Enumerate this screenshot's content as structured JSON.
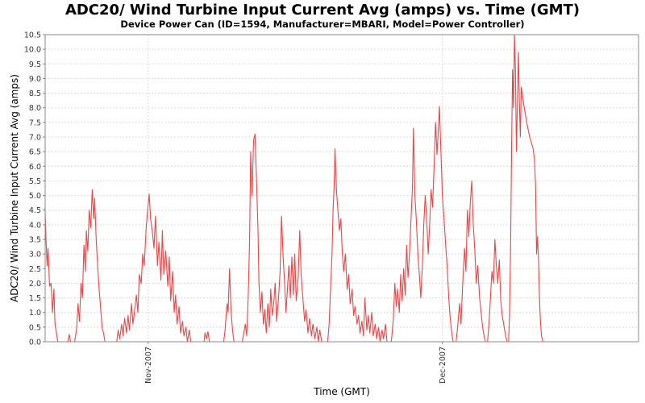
{
  "chart_data": {
    "type": "line",
    "title": "ADC20/ Wind Turbine Input Current Avg (amps) vs. Time (GMT)",
    "subtitle": "Device Power Can (ID=1594, Manufacturer=MBARI, Model=Power Controller)",
    "xlabel": "Time (GMT)",
    "ylabel": "ADC20/ Wind Turbine Input Current Avg (amps)",
    "x_units": "days relative to 2007-11-01 (GMT)",
    "xlim": [
      -10.5,
      50.0
    ],
    "ylim": [
      0.0,
      10.5
    ],
    "grid": true,
    "legend": "none",
    "x_ticks": [
      {
        "value": 0,
        "label": "Nov-2007"
      },
      {
        "value": 30,
        "label": "Dec-2007"
      }
    ],
    "y_ticks": [
      "0.0",
      "0.5",
      "1.0",
      "1.5",
      "2.0",
      "2.5",
      "3.0",
      "3.5",
      "4.0",
      "4.5",
      "5.0",
      "5.5",
      "6.0",
      "6.5",
      "7.0",
      "7.5",
      "8.0",
      "8.5",
      "9.0",
      "9.5",
      "10.0",
      "10.5"
    ],
    "series": [
      {
        "name": "ADC20/ Wind Turbine Input Current Avg",
        "color": "#ee4444",
        "points": [
          [
            -10.52,
            4.6
          ],
          [
            -10.4,
            3.4
          ],
          [
            -10.3,
            2.6
          ],
          [
            -10.2,
            3.2
          ],
          [
            -10.05,
            1.9
          ],
          [
            -9.9,
            2.0
          ],
          [
            -9.75,
            1.0
          ],
          [
            -9.6,
            1.8
          ],
          [
            -9.5,
            0.6
          ],
          [
            -9.35,
            0.3
          ],
          [
            -9.2,
            0.0
          ],
          [
            -8.2,
            0.0
          ],
          [
            -8.05,
            0.25
          ],
          [
            -7.9,
            0.0
          ],
          [
            -7.5,
            0.0
          ],
          [
            -7.3,
            0.4
          ],
          [
            -7.15,
            1.3
          ],
          [
            -7.0,
            0.7
          ],
          [
            -6.85,
            2.0
          ],
          [
            -6.7,
            1.5
          ],
          [
            -6.55,
            3.3
          ],
          [
            -6.4,
            2.4
          ],
          [
            -6.3,
            3.8
          ],
          [
            -6.15,
            3.1
          ],
          [
            -6.0,
            4.5
          ],
          [
            -5.85,
            3.9
          ],
          [
            -5.7,
            5.2
          ],
          [
            -5.55,
            4.2
          ],
          [
            -5.45,
            4.9
          ],
          [
            -5.3,
            3.5
          ],
          [
            -5.15,
            2.6
          ],
          [
            -5.0,
            1.8
          ],
          [
            -4.85,
            1.2
          ],
          [
            -4.7,
            0.5
          ],
          [
            -4.55,
            0.3
          ],
          [
            -4.4,
            0.0
          ],
          [
            -3.2,
            0.0
          ],
          [
            -3.05,
            0.4
          ],
          [
            -2.9,
            0.1
          ],
          [
            -2.7,
            0.6
          ],
          [
            -2.55,
            0.2
          ],
          [
            -2.4,
            0.8
          ],
          [
            -2.2,
            0.3
          ],
          [
            -2.05,
            0.9
          ],
          [
            -1.9,
            0.4
          ],
          [
            -1.7,
            1.3
          ],
          [
            -1.55,
            0.6
          ],
          [
            -1.4,
            1.0
          ],
          [
            -1.2,
            1.6
          ],
          [
            -1.05,
            1.0
          ],
          [
            -0.9,
            2.3
          ],
          [
            -0.7,
            2.0
          ],
          [
            -0.55,
            3.0
          ],
          [
            -0.4,
            2.6
          ],
          [
            -0.2,
            3.9
          ],
          [
            -0.05,
            4.5
          ],
          [
            0.1,
            5.05
          ],
          [
            0.25,
            4.2
          ],
          [
            0.45,
            3.7
          ],
          [
            0.6,
            3.2
          ],
          [
            0.75,
            4.3
          ],
          [
            0.95,
            2.6
          ],
          [
            1.1,
            3.4
          ],
          [
            1.3,
            2.1
          ],
          [
            1.45,
            3.8
          ],
          [
            1.6,
            2.3
          ],
          [
            1.8,
            3.1
          ],
          [
            2.0,
            1.9
          ],
          [
            2.15,
            2.9
          ],
          [
            2.3,
            1.4
          ],
          [
            2.5,
            2.4
          ],
          [
            2.65,
            1.0
          ],
          [
            2.8,
            1.6
          ],
          [
            2.95,
            0.6
          ],
          [
            3.15,
            1.2
          ],
          [
            3.3,
            0.3
          ],
          [
            3.5,
            0.7
          ],
          [
            3.65,
            0.2
          ],
          [
            3.85,
            0.5
          ],
          [
            4.0,
            0.0
          ],
          [
            4.2,
            0.4
          ],
          [
            4.35,
            0.0
          ],
          [
            5.7,
            0.0
          ],
          [
            5.8,
            0.3
          ],
          [
            5.95,
            0.1
          ],
          [
            6.1,
            0.35
          ],
          [
            6.25,
            0.0
          ],
          [
            7.7,
            0.0
          ],
          [
            7.85,
            0.4
          ],
          [
            7.95,
            0.9
          ],
          [
            8.05,
            1.3
          ],
          [
            8.15,
            1.0
          ],
          [
            8.3,
            2.5
          ],
          [
            8.45,
            1.1
          ],
          [
            8.6,
            0.4
          ],
          [
            8.75,
            0.0
          ],
          [
            9.6,
            0.0
          ],
          [
            9.75,
            0.3
          ],
          [
            9.9,
            0.6
          ],
          [
            10.05,
            0.2
          ],
          [
            10.2,
            1.5
          ],
          [
            10.35,
            3.5
          ],
          [
            10.45,
            6.5
          ],
          [
            10.6,
            5.0
          ],
          [
            10.75,
            6.9
          ],
          [
            10.9,
            7.1
          ],
          [
            11.05,
            5.5
          ],
          [
            11.2,
            3.8
          ],
          [
            11.3,
            2.0
          ],
          [
            11.45,
            1.0
          ],
          [
            11.6,
            1.7
          ],
          [
            11.75,
            0.6
          ],
          [
            11.9,
            1.1
          ],
          [
            12.05,
            0.3
          ],
          [
            12.2,
            1.3
          ],
          [
            12.35,
            0.5
          ],
          [
            12.5,
            1.8
          ],
          [
            12.65,
            0.9
          ],
          [
            12.8,
            1.3
          ],
          [
            12.95,
            2.0
          ],
          [
            13.1,
            0.7
          ],
          [
            13.3,
            1.5
          ],
          [
            13.45,
            2.4
          ],
          [
            13.6,
            4.3
          ],
          [
            13.75,
            3.0
          ],
          [
            13.9,
            2.1
          ],
          [
            14.05,
            1.0
          ],
          [
            14.2,
            1.8
          ],
          [
            14.35,
            2.6
          ],
          [
            14.5,
            1.5
          ],
          [
            14.65,
            2.9
          ],
          [
            14.8,
            1.6
          ],
          [
            14.95,
            3.0
          ],
          [
            15.1,
            1.4
          ],
          [
            15.3,
            2.2
          ],
          [
            15.45,
            3.8
          ],
          [
            15.6,
            2.3
          ],
          [
            15.8,
            1.4
          ],
          [
            15.95,
            0.7
          ],
          [
            16.1,
            1.1
          ],
          [
            16.3,
            0.3
          ],
          [
            16.45,
            0.8
          ],
          [
            16.65,
            0.2
          ],
          [
            16.8,
            0.6
          ],
          [
            17.0,
            0.1
          ],
          [
            17.2,
            0.5
          ],
          [
            17.35,
            0.0
          ],
          [
            17.5,
            0.4
          ],
          [
            17.7,
            0.0
          ],
          [
            18.3,
            0.0
          ],
          [
            18.45,
            0.6
          ],
          [
            18.6,
            1.8
          ],
          [
            18.75,
            3.0
          ],
          [
            18.85,
            4.5
          ],
          [
            18.95,
            5.2
          ],
          [
            19.05,
            6.6
          ],
          [
            19.2,
            5.2
          ],
          [
            19.35,
            4.5
          ],
          [
            19.5,
            3.8
          ],
          [
            19.65,
            4.2
          ],
          [
            19.8,
            3.0
          ],
          [
            19.95,
            2.4
          ],
          [
            20.1,
            3.0
          ],
          [
            20.3,
            1.8
          ],
          [
            20.45,
            2.3
          ],
          [
            20.6,
            1.3
          ],
          [
            20.8,
            1.8
          ],
          [
            20.95,
            0.9
          ],
          [
            21.1,
            1.2
          ],
          [
            21.3,
            0.6
          ],
          [
            21.45,
            0.9
          ],
          [
            21.6,
            0.3
          ],
          [
            21.8,
            0.7
          ],
          [
            21.95,
            0.2
          ],
          [
            22.1,
            1.5
          ],
          [
            22.3,
            0.4
          ],
          [
            22.45,
            0.9
          ],
          [
            22.6,
            0.3
          ],
          [
            22.8,
            1.0
          ],
          [
            22.95,
            0.2
          ],
          [
            23.15,
            0.6
          ],
          [
            23.3,
            0.1
          ],
          [
            23.5,
            0.5
          ],
          [
            23.65,
            0.0
          ],
          [
            23.85,
            0.4
          ],
          [
            24.0,
            0.1
          ],
          [
            24.2,
            0.6
          ],
          [
            24.35,
            0.0
          ],
          [
            24.8,
            0.0
          ],
          [
            25.0,
            0.8
          ],
          [
            25.15,
            2.0
          ],
          [
            25.3,
            1.2
          ],
          [
            25.45,
            1.8
          ],
          [
            25.6,
            1.0
          ],
          [
            25.75,
            2.3
          ],
          [
            25.9,
            1.4
          ],
          [
            26.05,
            2.5
          ],
          [
            26.2,
            1.6
          ],
          [
            26.35,
            3.3
          ],
          [
            26.5,
            2.2
          ],
          [
            26.65,
            3.0
          ],
          [
            26.8,
            4.2
          ],
          [
            26.95,
            5.3
          ],
          [
            27.05,
            7.3
          ],
          [
            27.2,
            5.0
          ],
          [
            27.35,
            4.1
          ],
          [
            27.5,
            3.0
          ],
          [
            27.65,
            2.3
          ],
          [
            27.8,
            1.5
          ],
          [
            27.95,
            2.6
          ],
          [
            28.1,
            4.0
          ],
          [
            28.25,
            5.0
          ],
          [
            28.4,
            4.2
          ],
          [
            28.55,
            3.0
          ],
          [
            28.7,
            4.0
          ],
          [
            28.85,
            5.2
          ],
          [
            29.0,
            4.6
          ],
          [
            29.15,
            6.0
          ],
          [
            29.3,
            7.5
          ],
          [
            29.45,
            6.4
          ],
          [
            29.6,
            7.3
          ],
          [
            29.7,
            8.05
          ],
          [
            29.85,
            6.5
          ],
          [
            30.0,
            5.0
          ],
          [
            30.15,
            4.3
          ],
          [
            30.3,
            3.5
          ],
          [
            30.5,
            2.5
          ],
          [
            30.65,
            1.5
          ],
          [
            30.8,
            0.8
          ],
          [
            30.95,
            0.3
          ],
          [
            31.1,
            0.0
          ],
          [
            31.4,
            0.0
          ],
          [
            31.55,
            0.5
          ],
          [
            31.75,
            1.3
          ],
          [
            31.9,
            0.6
          ],
          [
            32.05,
            1.8
          ],
          [
            32.25,
            3.2
          ],
          [
            32.4,
            2.4
          ],
          [
            32.55,
            4.5
          ],
          [
            32.7,
            3.6
          ],
          [
            32.85,
            4.8
          ],
          [
            33.0,
            5.5
          ],
          [
            33.15,
            4.0
          ],
          [
            33.3,
            3.2
          ],
          [
            33.45,
            2.0
          ],
          [
            33.6,
            2.6
          ],
          [
            33.8,
            1.5
          ],
          [
            33.95,
            1.0
          ],
          [
            34.1,
            0.5
          ],
          [
            34.25,
            0.2
          ],
          [
            34.4,
            0.0
          ],
          [
            34.6,
            0.0
          ],
          [
            34.75,
            0.6
          ],
          [
            34.9,
            1.5
          ],
          [
            35.05,
            2.4
          ],
          [
            35.2,
            2.0
          ],
          [
            35.35,
            3.5
          ],
          [
            35.5,
            2.6
          ],
          [
            35.65,
            2.0
          ],
          [
            35.8,
            2.8
          ],
          [
            35.95,
            1.4
          ],
          [
            36.1,
            0.9
          ],
          [
            36.3,
            0.5
          ],
          [
            36.45,
            0.2
          ],
          [
            36.6,
            0.0
          ],
          [
            36.75,
            0.0
          ],
          [
            36.85,
            1.0
          ],
          [
            36.95,
            3.0
          ],
          [
            37.05,
            6.5
          ],
          [
            37.15,
            9.3
          ],
          [
            37.25,
            8.0
          ],
          [
            37.35,
            10.5
          ],
          [
            37.45,
            9.3
          ],
          [
            37.55,
            6.5
          ],
          [
            37.65,
            8.2
          ],
          [
            37.75,
            9.9
          ],
          [
            37.85,
            8.2
          ],
          [
            37.95,
            7.0
          ],
          [
            38.05,
            8.7
          ],
          [
            38.3,
            8.1
          ],
          [
            38.6,
            7.5
          ],
          [
            38.9,
            7.0
          ],
          [
            39.25,
            6.6
          ],
          [
            39.4,
            6.2
          ],
          [
            39.5,
            5.3
          ],
          [
            39.6,
            3.0
          ],
          [
            39.7,
            3.6
          ],
          [
            39.8,
            2.8
          ],
          [
            39.9,
            1.5
          ],
          [
            40.0,
            0.7
          ],
          [
            40.1,
            0.2
          ],
          [
            40.25,
            0.0
          ],
          [
            45.0,
            0.0
          ]
        ]
      }
    ]
  }
}
